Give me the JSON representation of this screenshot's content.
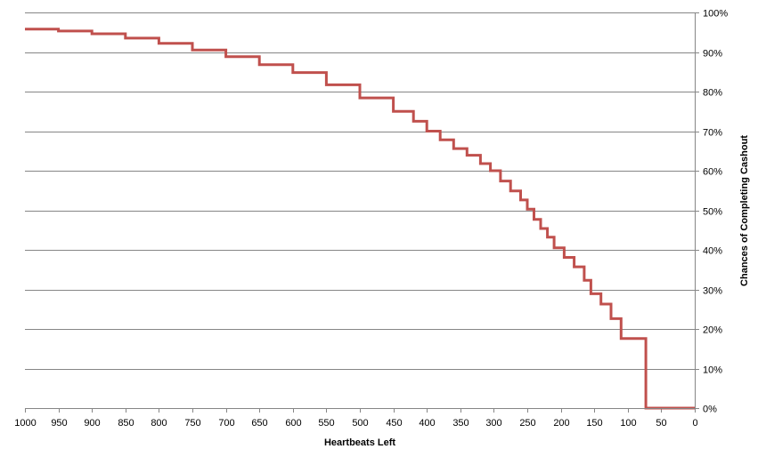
{
  "chart_data": {
    "type": "line",
    "title": "",
    "xlabel": "Heartbeats Left",
    "ylabel": "Chances of Completing Cashout",
    "x_axis_reversed": true,
    "xlim": [
      0,
      1000
    ],
    "ylim": [
      0,
      100
    ],
    "y_axis_side": "right",
    "y_tick_format": "percent",
    "grid": "horizontal",
    "legend": "none",
    "x_ticks": [
      "1000",
      "950",
      "900",
      "850",
      "800",
      "750",
      "700",
      "650",
      "600",
      "550",
      "500",
      "450",
      "400",
      "350",
      "300",
      "250",
      "200",
      "150",
      "100",
      "50",
      "0"
    ],
    "y_ticks": [
      "0%",
      "10%",
      "20%",
      "30%",
      "40%",
      "50%",
      "60%",
      "70%",
      "80%",
      "90%",
      "100%"
    ],
    "series": [
      {
        "color": "#c0504d",
        "step": true,
        "points": [
          [
            1000,
            95.8
          ],
          [
            950,
            95.3
          ],
          [
            900,
            94.6
          ],
          [
            850,
            93.5
          ],
          [
            800,
            92.2
          ],
          [
            750,
            90.5
          ],
          [
            700,
            88.8
          ],
          [
            650,
            86.8
          ],
          [
            600,
            84.8
          ],
          [
            550,
            81.7
          ],
          [
            500,
            78.4
          ],
          [
            450,
            75.0
          ],
          [
            420,
            72.5
          ],
          [
            400,
            70.0
          ],
          [
            380,
            67.8
          ],
          [
            360,
            65.6
          ],
          [
            340,
            63.9
          ],
          [
            320,
            61.8
          ],
          [
            305,
            60.0
          ],
          [
            290,
            57.4
          ],
          [
            275,
            54.9
          ],
          [
            260,
            52.6
          ],
          [
            250,
            50.3
          ],
          [
            240,
            47.7
          ],
          [
            230,
            45.4
          ],
          [
            220,
            43.2
          ],
          [
            210,
            40.5
          ],
          [
            195,
            38.1
          ],
          [
            180,
            35.7
          ],
          [
            165,
            32.3
          ],
          [
            155,
            28.9
          ],
          [
            140,
            26.3
          ],
          [
            125,
            22.6
          ],
          [
            110,
            17.6
          ],
          [
            73,
            17.6
          ],
          [
            73,
            0.0
          ],
          [
            0,
            0.0
          ]
        ]
      }
    ]
  }
}
